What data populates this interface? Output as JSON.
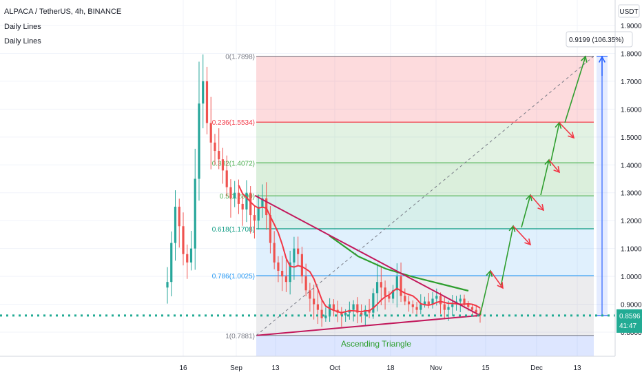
{
  "header": {
    "symbol": "ALPACA / TetherUS, 4h, BINANCE",
    "indicator1": "Daily Lines",
    "indicator2": "Daily Lines"
  },
  "price_axis": {
    "currency_button": "USDT",
    "tick_labels": [
      "1.9000",
      "1.8000",
      "1.7000",
      "1.6000",
      "1.5000",
      "1.4000",
      "1.3000",
      "1.2000",
      "1.1000",
      "1.0000",
      "0.9000",
      "0.8000"
    ],
    "current_price": "0.8596",
    "countdown": "41:47"
  },
  "measure_box": {
    "label": "0.9199 (106.35%)"
  },
  "annotation": {
    "pattern_label": "Ascending Triangle"
  },
  "colors": {
    "up": "#26a69a",
    "down": "#ef5350",
    "fib_0": "#787b86",
    "fib_236": "#f23645",
    "fib_382": "#4caf50",
    "fib_5": "#4caf50",
    "fib_618": "#089981",
    "fib_786": "#2196f3",
    "fib_1": "#787b86",
    "trendline": "#c2185b",
    "arrow_up": "#2e9e2e",
    "arrow_down": "#f23645",
    "ma_red": "#f23645",
    "ma_green": "#2e9e2e",
    "current_price_line": "#22ab94",
    "measure_line": "#2962ff"
  },
  "chart_data": {
    "type": "candlestick",
    "x_tick_labels": [
      "16",
      "Sep",
      "13",
      "Oct",
      "18",
      "Nov",
      "15",
      "Dec",
      "13"
    ],
    "y_range": [
      0.75,
      1.95
    ],
    "fib_levels": [
      {
        "ratio": "0",
        "price": 1.7898,
        "label": "0(1.7898)"
      },
      {
        "ratio": "0.236",
        "price": 1.5534,
        "label": "0.236(1.5534)"
      },
      {
        "ratio": "0.382",
        "price": 1.4072,
        "label": "0.382(1.4072)"
      },
      {
        "ratio": "0.5",
        "price": 1.289,
        "label": "0.5(1.2890)"
      },
      {
        "ratio": "0.618",
        "price": 1.1708,
        "label": "0.618(1.1708)"
      },
      {
        "ratio": "0.786",
        "price": 1.0025,
        "label": "0.786(1.0025)"
      },
      {
        "ratio": "1",
        "price": 0.7881,
        "label": "1(0.7881)"
      }
    ],
    "current_price": 0.8596,
    "projected_move": 0.9199,
    "projected_move_percent": 106.35,
    "closes": [
      0.98,
      1.12,
      1.25,
      1.18,
      1.08,
      1.05,
      1.1,
      1.35,
      1.62,
      1.7,
      1.55,
      1.48,
      1.45,
      1.42,
      1.38,
      1.32,
      1.28,
      1.3,
      1.26,
      1.24,
      1.3,
      1.22,
      1.2,
      1.25,
      1.28,
      1.22,
      1.12,
      1.05,
      1.02,
      1.0,
      0.98,
      1.05,
      1.1,
      1.08,
      1.0,
      0.95,
      0.92,
      0.9,
      0.88,
      0.85,
      0.86,
      0.9,
      0.88,
      0.87,
      0.86,
      0.87,
      0.88,
      0.9,
      0.87,
      0.86,
      0.88,
      0.87,
      0.94,
      0.98,
      0.96,
      0.93,
      0.92,
      0.95,
      1.0,
      0.93,
      0.91,
      0.9,
      0.89,
      0.88,
      0.9,
      0.91,
      0.9,
      0.92,
      0.93,
      0.9,
      0.88,
      0.89,
      0.9,
      0.91,
      0.92,
      0.9,
      0.89,
      0.88,
      0.87,
      0.86
    ],
    "volatility": [
      0.06,
      0.08,
      0.07,
      0.06,
      0.05,
      0.05,
      0.06,
      0.12,
      0.14,
      0.1,
      0.09,
      0.07,
      0.06,
      0.06,
      0.05,
      0.05,
      0.05,
      0.05,
      0.05,
      0.05,
      0.06,
      0.05,
      0.05,
      0.05,
      0.05,
      0.05,
      0.06,
      0.05,
      0.05,
      0.05,
      0.05,
      0.05,
      0.05,
      0.05,
      0.04,
      0.04,
      0.04,
      0.04,
      0.04,
      0.03,
      0.03,
      0.03,
      0.03,
      0.03,
      0.03,
      0.03,
      0.03,
      0.03,
      0.03,
      0.03,
      0.03,
      0.03,
      0.04,
      0.06,
      0.05,
      0.04,
      0.03,
      0.04,
      0.05,
      0.04,
      0.03,
      0.03,
      0.03,
      0.03,
      0.03,
      0.03,
      0.03,
      0.03,
      0.03,
      0.03,
      0.03,
      0.03,
      0.03,
      0.03,
      0.03,
      0.03,
      0.02,
      0.02,
      0.02,
      0.02
    ]
  }
}
